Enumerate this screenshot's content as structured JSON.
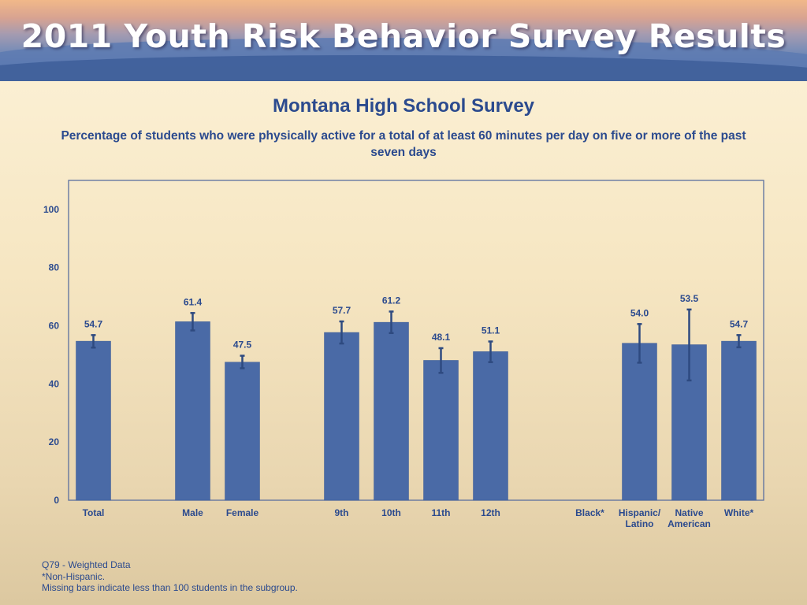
{
  "header": {
    "banner_title": "2011 Youth Risk Behavior Survey Results"
  },
  "chart_data": {
    "type": "bar",
    "title": "Montana High School Survey",
    "subtitle": "Percentage of students who were physically active for a total of at least 60 minutes per day on five or more of the past seven days",
    "xlabel": "",
    "ylabel": "",
    "ylim": [
      0,
      110
    ],
    "yticks": [
      0,
      20,
      40,
      60,
      80,
      100
    ],
    "grid": false,
    "bar_color": "#4a6aa6",
    "categories": [
      {
        "label": [
          "Total"
        ],
        "value": 54.7,
        "value_label": "54.7",
        "ci": [
          52.5,
          56.8
        ]
      },
      {
        "label": [
          ""
        ],
        "value": null,
        "value_label": "",
        "ci": null
      },
      {
        "label": [
          "Male"
        ],
        "value": 61.4,
        "value_label": "61.4",
        "ci": [
          58.4,
          64.4
        ]
      },
      {
        "label": [
          "Female"
        ],
        "value": 47.5,
        "value_label": "47.5",
        "ci": [
          45.4,
          49.7
        ]
      },
      {
        "label": [
          ""
        ],
        "value": null,
        "value_label": "",
        "ci": null
      },
      {
        "label": [
          "9th"
        ],
        "value": 57.7,
        "value_label": "57.7",
        "ci": [
          53.9,
          61.5
        ]
      },
      {
        "label": [
          "10th"
        ],
        "value": 61.2,
        "value_label": "61.2",
        "ci": [
          57.5,
          64.9
        ]
      },
      {
        "label": [
          "11th"
        ],
        "value": 48.1,
        "value_label": "48.1",
        "ci": [
          43.8,
          52.3
        ]
      },
      {
        "label": [
          "12th"
        ],
        "value": 51.1,
        "value_label": "51.1",
        "ci": [
          47.5,
          54.6
        ]
      },
      {
        "label": [
          ""
        ],
        "value": null,
        "value_label": "",
        "ci": null
      },
      {
        "label": [
          "Black*"
        ],
        "value": null,
        "value_label": "",
        "ci": null
      },
      {
        "label": [
          "Hispanic/",
          "Latino"
        ],
        "value": 54.0,
        "value_label": "54.0",
        "ci": [
          47.3,
          60.6
        ]
      },
      {
        "label": [
          "Native",
          "American"
        ],
        "value": 53.5,
        "value_label": "53.5",
        "ci": [
          41.2,
          65.6
        ]
      },
      {
        "label": [
          "White*"
        ],
        "value": 54.7,
        "value_label": "54.7",
        "ci": [
          52.6,
          56.8
        ]
      }
    ]
  },
  "notes": {
    "line1": "Q79 - Weighted Data",
    "line2": "*Non-Hispanic.",
    "line3": "Missing bars indicate less than 100 students in the subgroup."
  }
}
